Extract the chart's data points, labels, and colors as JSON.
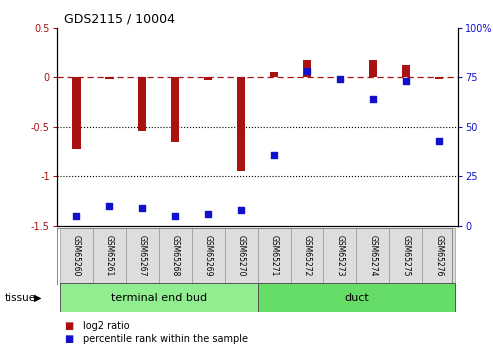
{
  "title": "GDS2115 / 10004",
  "samples": [
    "GSM65260",
    "GSM65261",
    "GSM65267",
    "GSM65268",
    "GSM65269",
    "GSM65270",
    "GSM65271",
    "GSM65272",
    "GSM65273",
    "GSM65274",
    "GSM65275",
    "GSM65276"
  ],
  "log2_ratio": [
    -0.72,
    -0.02,
    -0.54,
    -0.65,
    -0.03,
    -0.95,
    0.05,
    0.17,
    0.0,
    0.17,
    0.12,
    -0.02
  ],
  "percentile": [
    5,
    10,
    9,
    5,
    6,
    8,
    36,
    78,
    74,
    64,
    73,
    43
  ],
  "tissue_groups": [
    {
      "label": "terminal end bud",
      "start": 0,
      "end": 6,
      "color": "#90ee90"
    },
    {
      "label": "duct",
      "start": 6,
      "end": 12,
      "color": "#66dd66"
    }
  ],
  "bar_color": "#aa1111",
  "dot_color": "#1111cc",
  "ylim_left": [
    -1.5,
    0.5
  ],
  "ylim_right": [
    0,
    100
  ],
  "yticks_left": [
    -1.5,
    -1.0,
    -0.5,
    0.0,
    0.5
  ],
  "ytick_labels_left": [
    "-1.5",
    "-1",
    "-0.5",
    "0",
    "0.5"
  ],
  "yticks_right": [
    0,
    25,
    50,
    75,
    100
  ],
  "ytick_labels_right": [
    "0",
    "25",
    "50",
    "75",
    "100%"
  ],
  "hlines": [
    0.0,
    -0.5,
    -1.0
  ],
  "hline_styles": [
    "dashed",
    "dotted",
    "dotted"
  ],
  "legend_bar_label": "log2 ratio",
  "legend_dot_label": "percentile rank within the sample",
  "tissue_label": "tissue",
  "background_color": "#ffffff",
  "plot_bg": "#ffffff",
  "bar_width": 0.25
}
